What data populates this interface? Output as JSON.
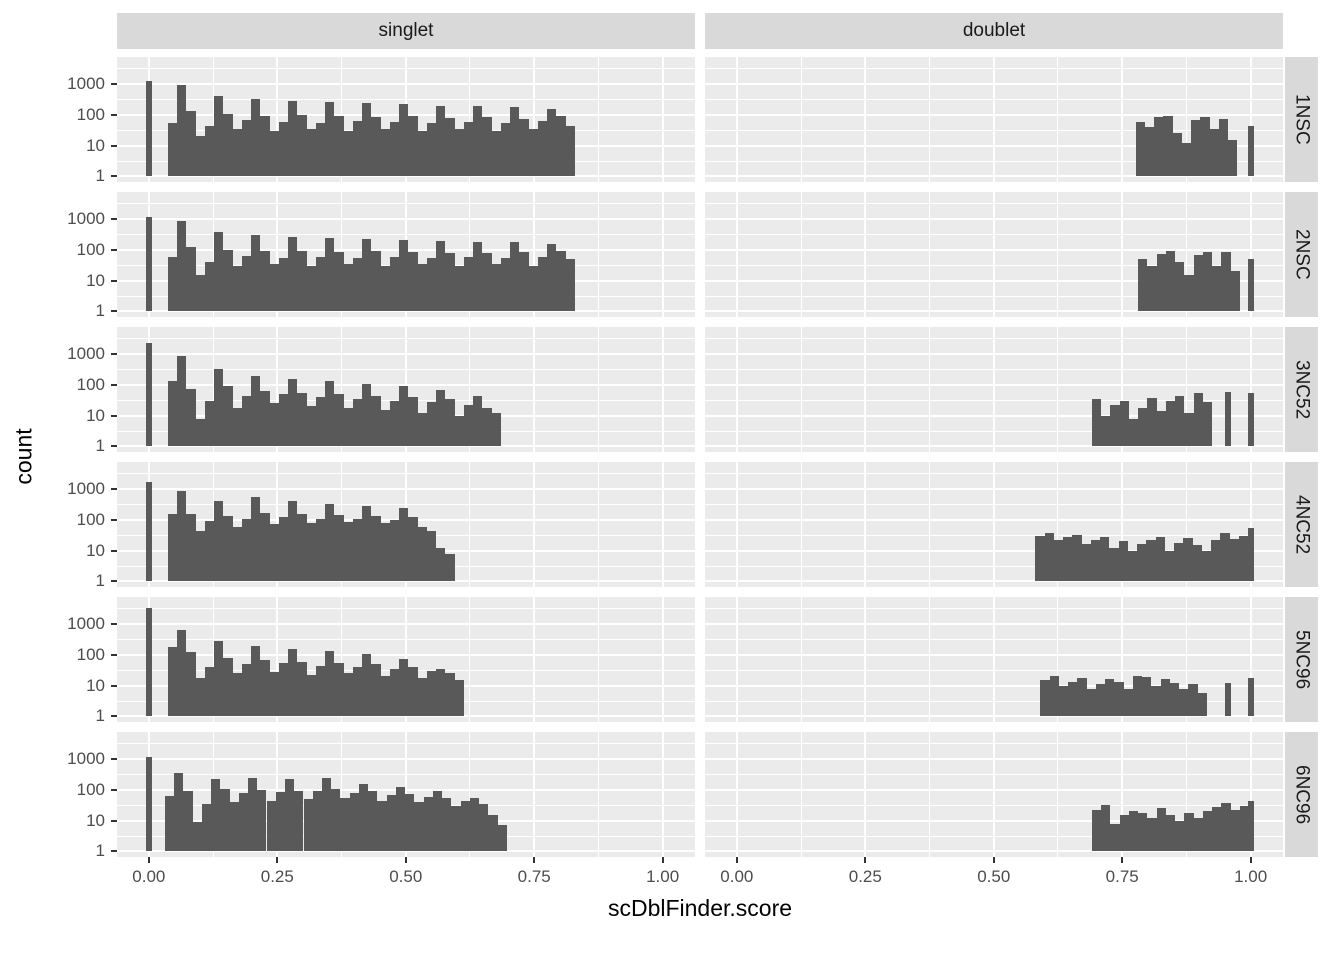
{
  "chart_data": {
    "type": "bar",
    "subtype": "faceted-histogram",
    "title": "",
    "xlabel": "scDblFinder.score",
    "ylabel": "count",
    "y_scale": "log10",
    "grid": true,
    "facet_columns": [
      "singlet",
      "doublet"
    ],
    "facet_rows": [
      "1NSC",
      "2NSC",
      "3NC52",
      "4NC52",
      "5NC96",
      "6NC96"
    ],
    "x_ticks": {
      "labels": [
        "0.00",
        "0.25",
        "0.50",
        "0.75",
        "1.00"
      ],
      "values": [
        0,
        0.25,
        0.5,
        0.75,
        1.0
      ]
    },
    "y_ticks": {
      "labels": [
        "1000",
        "100",
        "10",
        "1"
      ],
      "values": [
        1000,
        100,
        10,
        1
      ]
    },
    "x_range": [
      -0.062,
      1.063
    ],
    "y_range_log10": [
      -0.18,
      3.88
    ],
    "grid_minor_y": [
      3.1623,
      31.623,
      316.23,
      3162.3
    ],
    "grid_minor_x": [
      0.125,
      0.375,
      0.625,
      0.875
    ],
    "bin_width": 0.018,
    "colors": {
      "bar": "#595959",
      "panel_bg": "#EBEBEB",
      "strip_bg": "#D9D9D9",
      "grid": "#FFFFFF",
      "tick_text": "#4D4D4D",
      "title_text": "#000000",
      "strip_text": "#1A1A1A"
    },
    "panels": [
      {
        "row": "1NSC",
        "col": "singlet",
        "x0": 0.046,
        "counts": [
          55,
          950,
          130,
          20,
          45,
          420,
          110,
          35,
          70,
          330,
          95,
          30,
          60,
          290,
          100,
          35,
          55,
          260,
          90,
          30,
          65,
          240,
          85,
          35,
          60,
          220,
          90,
          30,
          55,
          200,
          80,
          35,
          60,
          190,
          85,
          30,
          55,
          180,
          75,
          35,
          65,
          160,
          90,
          45
        ],
        "spikes": [
          {
            "x": 0.0,
            "count": 1250
          }
        ]
      },
      {
        "row": "1NSC",
        "col": "doublet",
        "x0": 0.785,
        "counts": [
          60,
          40,
          85,
          95,
          25,
          12,
          70,
          88,
          35,
          75,
          15
        ],
        "spikes": [
          {
            "x": 1.0,
            "count": 45
          }
        ]
      },
      {
        "row": "2NSC",
        "col": "singlet",
        "x0": 0.046,
        "counts": [
          60,
          900,
          120,
          15,
          40,
          380,
          100,
          30,
          65,
          310,
          90,
          35,
          55,
          270,
          95,
          30,
          60,
          250,
          85,
          35,
          55,
          230,
          90,
          30,
          60,
          210,
          85,
          35,
          55,
          200,
          80,
          30,
          60,
          185,
          80,
          35,
          55,
          175,
          85,
          30,
          60,
          155,
          95,
          50
        ],
        "spikes": [
          {
            "x": 0.0,
            "count": 1150
          }
        ]
      },
      {
        "row": "2NSC",
        "col": "doublet",
        "x0": 0.79,
        "counts": [
          50,
          30,
          75,
          95,
          40,
          15,
          70,
          85,
          30,
          88,
          20
        ],
        "spikes": [
          {
            "x": 1.0,
            "count": 50
          }
        ]
      },
      {
        "row": "3NC52",
        "col": "singlet",
        "x0": 0.046,
        "counts": [
          130,
          900,
          75,
          8,
          30,
          320,
          90,
          18,
          45,
          200,
          65,
          25,
          50,
          160,
          55,
          20,
          40,
          130,
          50,
          18,
          35,
          110,
          45,
          15,
          30,
          90,
          40,
          12,
          28,
          70,
          35,
          10,
          22,
          45,
          18,
          12
        ],
        "spikes": [
          {
            "x": 0.0,
            "count": 2300
          }
        ]
      },
      {
        "row": "3NC52",
        "col": "doublet",
        "x0": 0.7,
        "counts": [
          35,
          10,
          22,
          30,
          8,
          18,
          38,
          14,
          30,
          45,
          12,
          55,
          28
        ],
        "spikes": [
          {
            "x": 0.955,
            "count": 60
          },
          {
            "x": 1.0,
            "count": 55
          }
        ]
      },
      {
        "row": "4NC52",
        "col": "singlet",
        "x0": 0.046,
        "counts": [
          150,
          900,
          160,
          45,
          90,
          420,
          130,
          60,
          110,
          550,
          170,
          75,
          120,
          420,
          150,
          80,
          110,
          330,
          140,
          85,
          105,
          290,
          130,
          80,
          100,
          250,
          120,
          60,
          45,
          12,
          8
        ],
        "spikes": [
          {
            "x": 0.0,
            "count": 1750
          }
        ]
      },
      {
        "row": "4NC52",
        "col": "doublet",
        "x0": 0.59,
        "counts": [
          30,
          38,
          22,
          28,
          32,
          16,
          22,
          28,
          12,
          20,
          10,
          16,
          22,
          28,
          10,
          18,
          26,
          15,
          10,
          22,
          38,
          24,
          30
        ],
        "spikes": [
          {
            "x": 1.0,
            "count": 55
          }
        ]
      },
      {
        "row": "5NC96",
        "col": "singlet",
        "x0": 0.046,
        "counts": [
          175,
          620,
          120,
          18,
          40,
          280,
          80,
          25,
          50,
          200,
          70,
          28,
          55,
          160,
          60,
          22,
          45,
          130,
          55,
          25,
          40,
          105,
          50,
          20,
          35,
          75,
          40,
          18,
          30,
          35,
          25,
          15
        ],
        "spikes": [
          {
            "x": 0.0,
            "count": 3300
          }
        ]
      },
      {
        "row": "5NC96",
        "col": "doublet",
        "x0": 0.6,
        "counts": [
          15,
          20,
          10,
          13,
          18,
          8,
          11,
          16,
          13,
          8,
          20,
          19,
          10,
          16,
          12,
          8,
          11,
          6
        ],
        "spikes": [
          {
            "x": 0.955,
            "count": 12
          },
          {
            "x": 1.0,
            "count": 18
          }
        ]
      },
      {
        "row": "6NC96",
        "col": "singlet",
        "x0": 0.04,
        "counts": [
          65,
          350,
          90,
          9,
          35,
          230,
          110,
          40,
          80,
          240,
          100,
          45,
          85,
          220,
          95,
          50,
          90,
          250,
          105,
          55,
          80,
          160,
          90,
          45,
          70,
          120,
          75,
          40,
          60,
          95,
          55,
          30,
          45,
          55,
          35,
          15,
          7
        ],
        "spikes": [
          {
            "x": 0.0,
            "count": 1150
          }
        ]
      },
      {
        "row": "6NC96",
        "col": "doublet",
        "x0": 0.7,
        "counts": [
          22,
          32,
          8,
          15,
          20,
          18,
          12,
          26,
          15,
          10,
          18,
          12,
          20,
          28,
          38,
          22,
          30
        ],
        "spikes": [
          {
            "x": 1.0,
            "count": 42
          }
        ]
      }
    ]
  }
}
